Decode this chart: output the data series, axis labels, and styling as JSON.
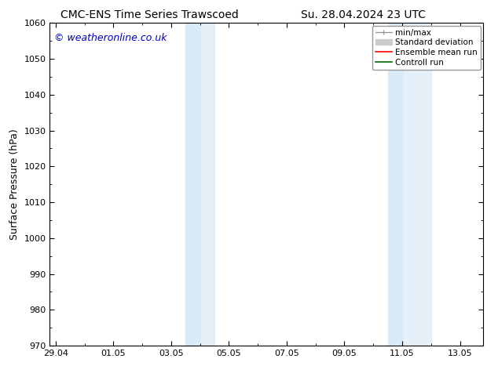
{
  "title_left": "CMC-ENS Time Series Trawscoed",
  "title_right": "Su. 28.04.2024 23 UTC",
  "ylabel": "Surface Pressure (hPa)",
  "background_color": "#ffffff",
  "plot_bg_color": "#ffffff",
  "ylim": [
    970,
    1060
  ],
  "yticks": [
    970,
    980,
    990,
    1000,
    1010,
    1020,
    1030,
    1040,
    1050,
    1060
  ],
  "xtick_labels": [
    "29.04",
    "01.05",
    "03.05",
    "05.05",
    "07.05",
    "09.05",
    "11.05",
    "13.05"
  ],
  "xtick_pos": [
    0,
    2,
    4,
    6,
    8,
    10,
    12,
    14
  ],
  "xlim": [
    -0.2,
    14.8
  ],
  "watermark": "© weatheronline.co.uk",
  "watermark_color": "#0000cc",
  "shaded_regions": [
    {
      "xstart": 4.5,
      "xmid": 5.0,
      "xend": 5.5
    },
    {
      "xstart": 11.5,
      "xmid": 12.0,
      "xend": 13.0
    }
  ],
  "shade_color": "#daeaf7",
  "shade_mid_color": "#c8dced",
  "legend_entries": [
    {
      "label": "min/max",
      "color": "#aaaaaa",
      "lw": 1.2
    },
    {
      "label": "Standard deviation",
      "color": "#bbbbbb",
      "lw": 5
    },
    {
      "label": "Ensemble mean run",
      "color": "#ff0000",
      "lw": 1.2
    },
    {
      "label": "Controll run",
      "color": "#006600",
      "lw": 1.2
    }
  ],
  "tick_color": "#000000",
  "font_color": "#000000",
  "title_fontsize": 10,
  "axis_label_fontsize": 9,
  "tick_fontsize": 8,
  "legend_fontsize": 7.5,
  "watermark_fontsize": 9
}
